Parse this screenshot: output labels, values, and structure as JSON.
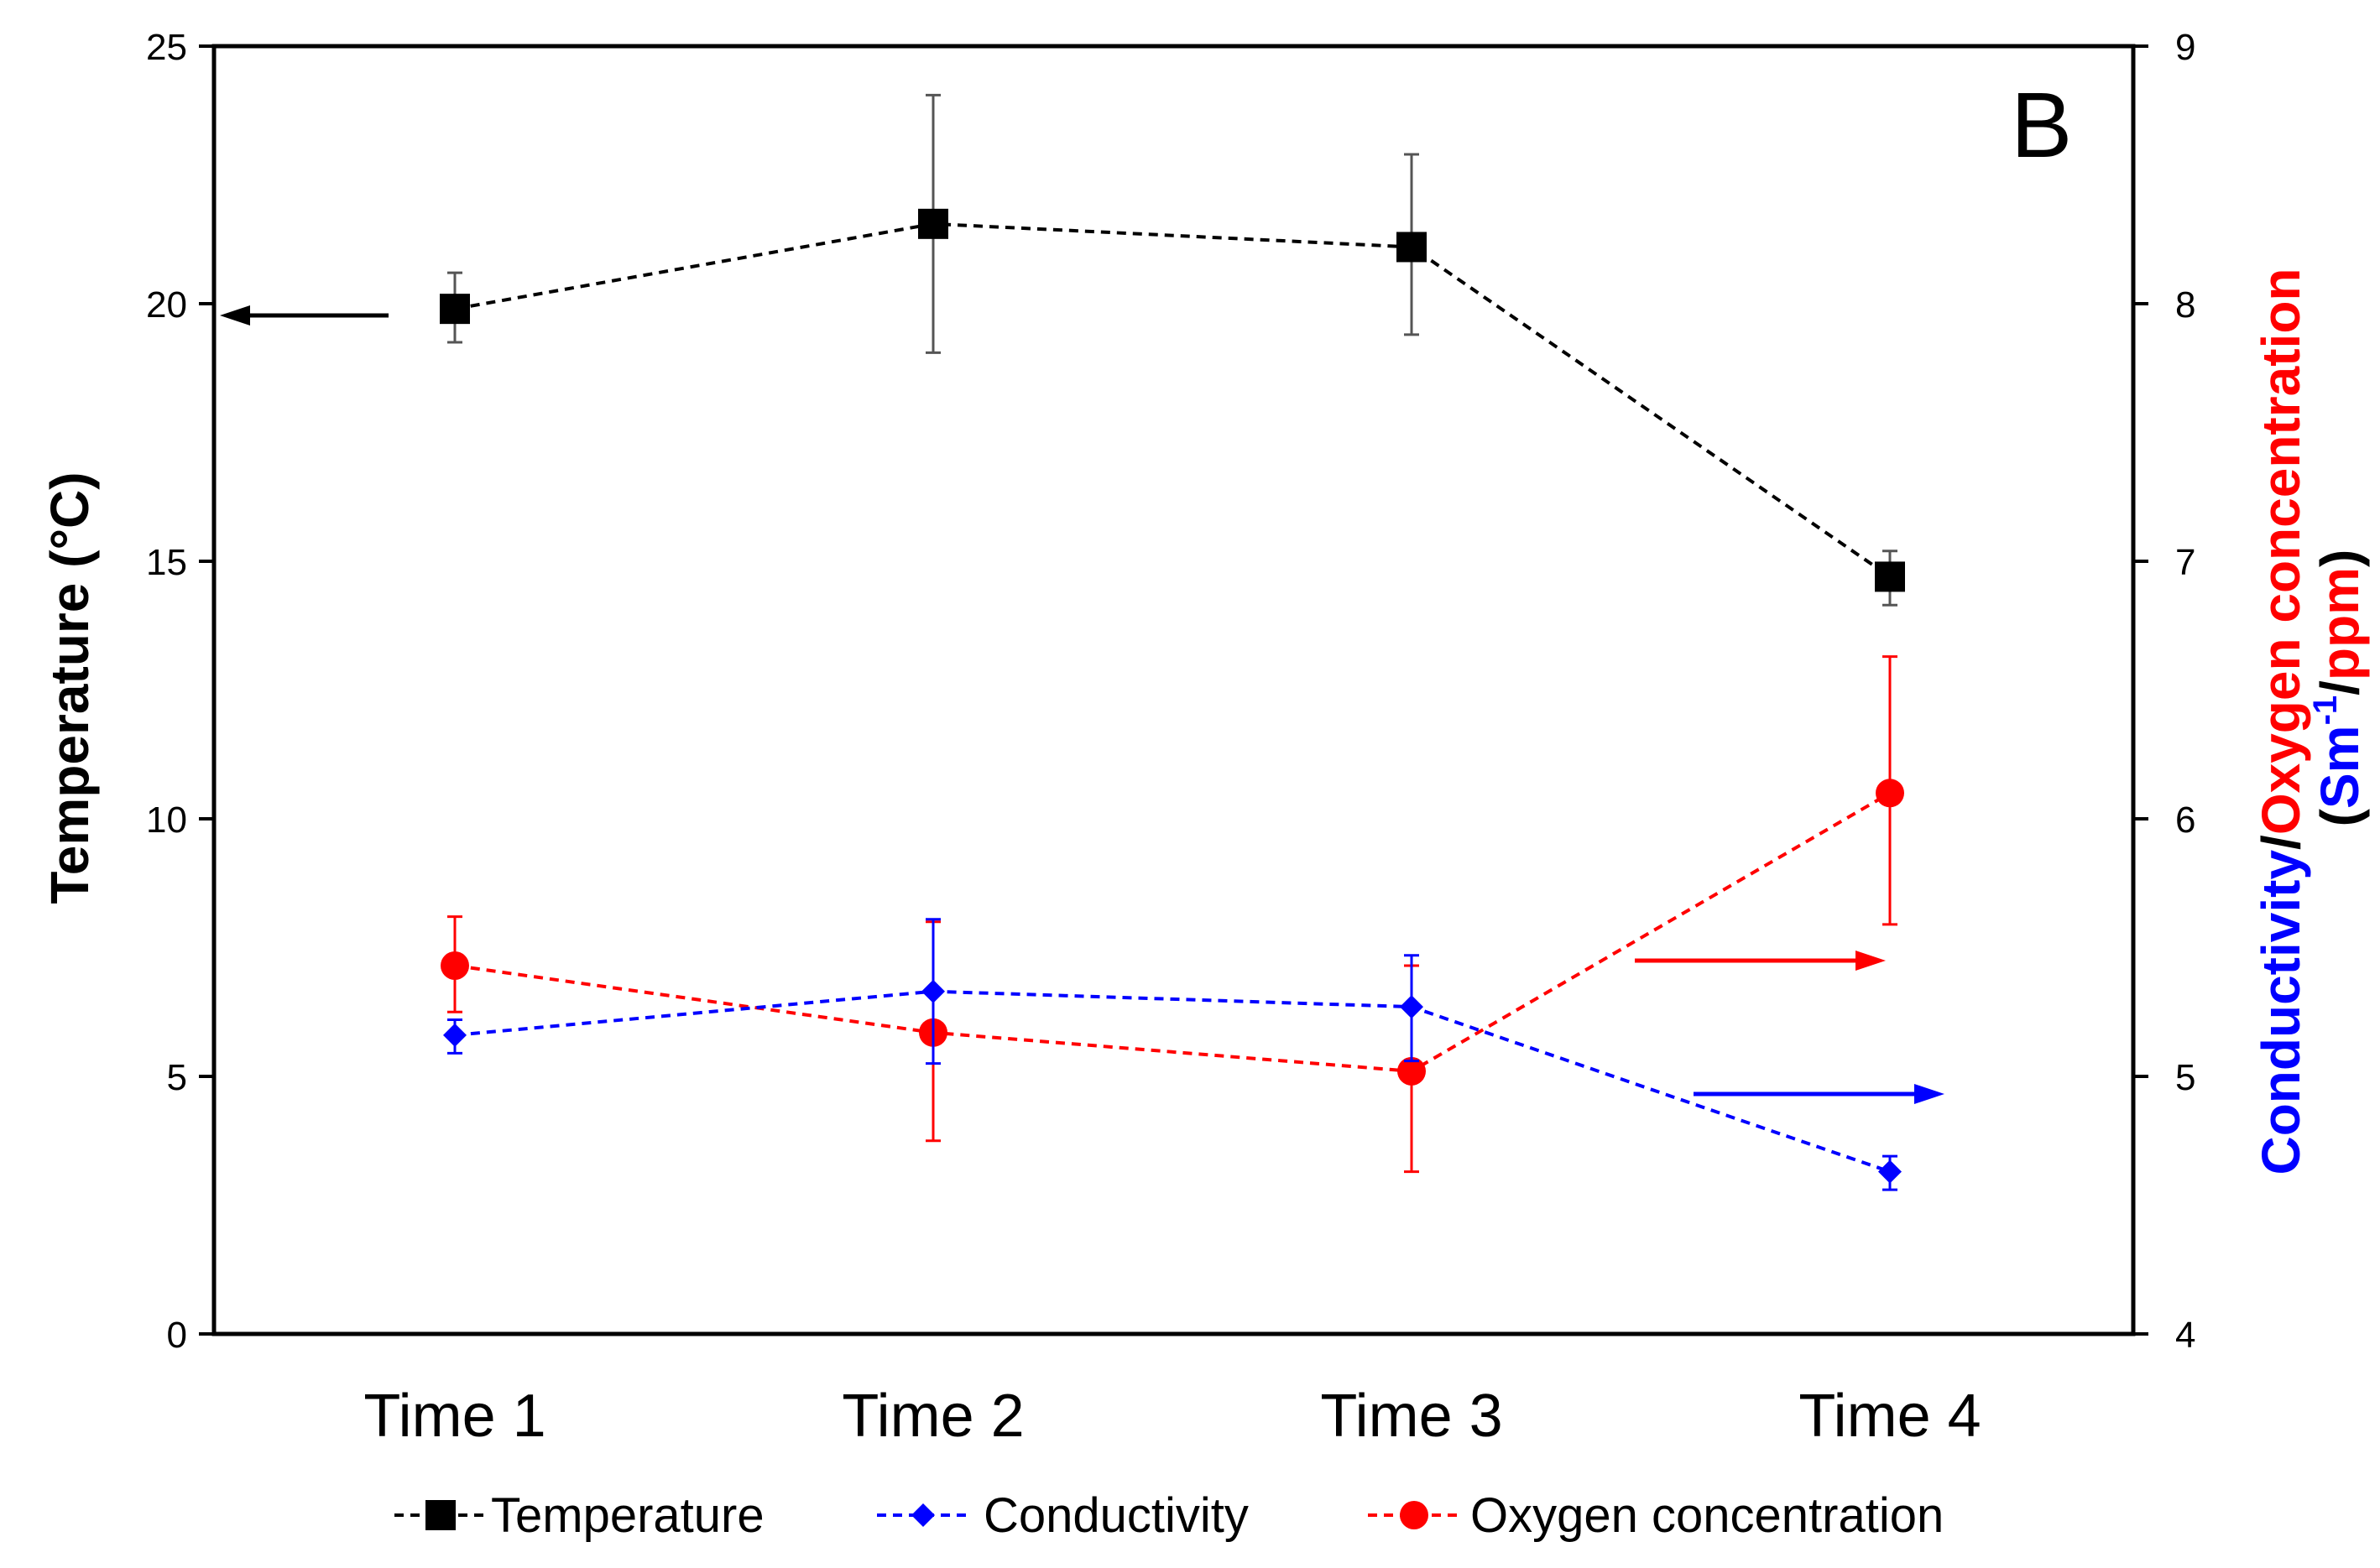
{
  "chart_data": {
    "type": "line",
    "panel_label": "B",
    "categories": [
      "Time 1",
      "Time 2",
      "Time 3",
      "Time 4"
    ],
    "y_left": {
      "label": "Temperature (°C)",
      "range": [
        0,
        25
      ],
      "ticks": [
        0,
        5,
        10,
        15,
        20,
        25
      ]
    },
    "y_right": {
      "label_part1": "Conductivity",
      "label_sep": "/",
      "label_part2": "Oxygen concentration",
      "label_units_open": "(",
      "label_units_blue": "Sm",
      "label_units_sup": "-1",
      "label_units_sep": "/",
      "label_units_red": "ppm",
      "label_units_close": ")",
      "range": [
        4,
        9
      ],
      "ticks": [
        4,
        5,
        6,
        7,
        8,
        9
      ]
    },
    "series": [
      {
        "name": "Temperature",
        "axis": "left",
        "color": "#000000",
        "marker": "square",
        "values": [
          19.9,
          21.55,
          21.1,
          14.7
        ],
        "err_low": [
          19.25,
          19.05,
          19.4,
          14.15
        ],
        "err_high": [
          20.6,
          24.05,
          22.9,
          15.2
        ]
      },
      {
        "name": "Conductivity",
        "axis": "right",
        "color": "#0000ff",
        "marker": "diamond",
        "values": [
          5.16,
          5.33,
          5.27,
          4.63
        ],
        "err_low": [
          5.09,
          5.05,
          5.06,
          4.56
        ],
        "err_high": [
          5.22,
          5.61,
          5.47,
          4.69
        ]
      },
      {
        "name": "Oxygen concentration",
        "axis": "right",
        "color": "#ff0000",
        "marker": "circle",
        "values": [
          5.43,
          5.17,
          5.02,
          6.1
        ],
        "err_low": [
          5.25,
          4.75,
          4.63,
          5.59
        ],
        "err_high": [
          5.62,
          5.6,
          5.43,
          6.63
        ]
      }
    ],
    "axis_arrows": [
      {
        "series": "Temperature",
        "points_to": "left"
      },
      {
        "series": "Oxygen concentration",
        "points_to": "right"
      },
      {
        "series": "Conductivity",
        "points_to": "right"
      }
    ],
    "legend_position": "bottom",
    "grid": false
  }
}
